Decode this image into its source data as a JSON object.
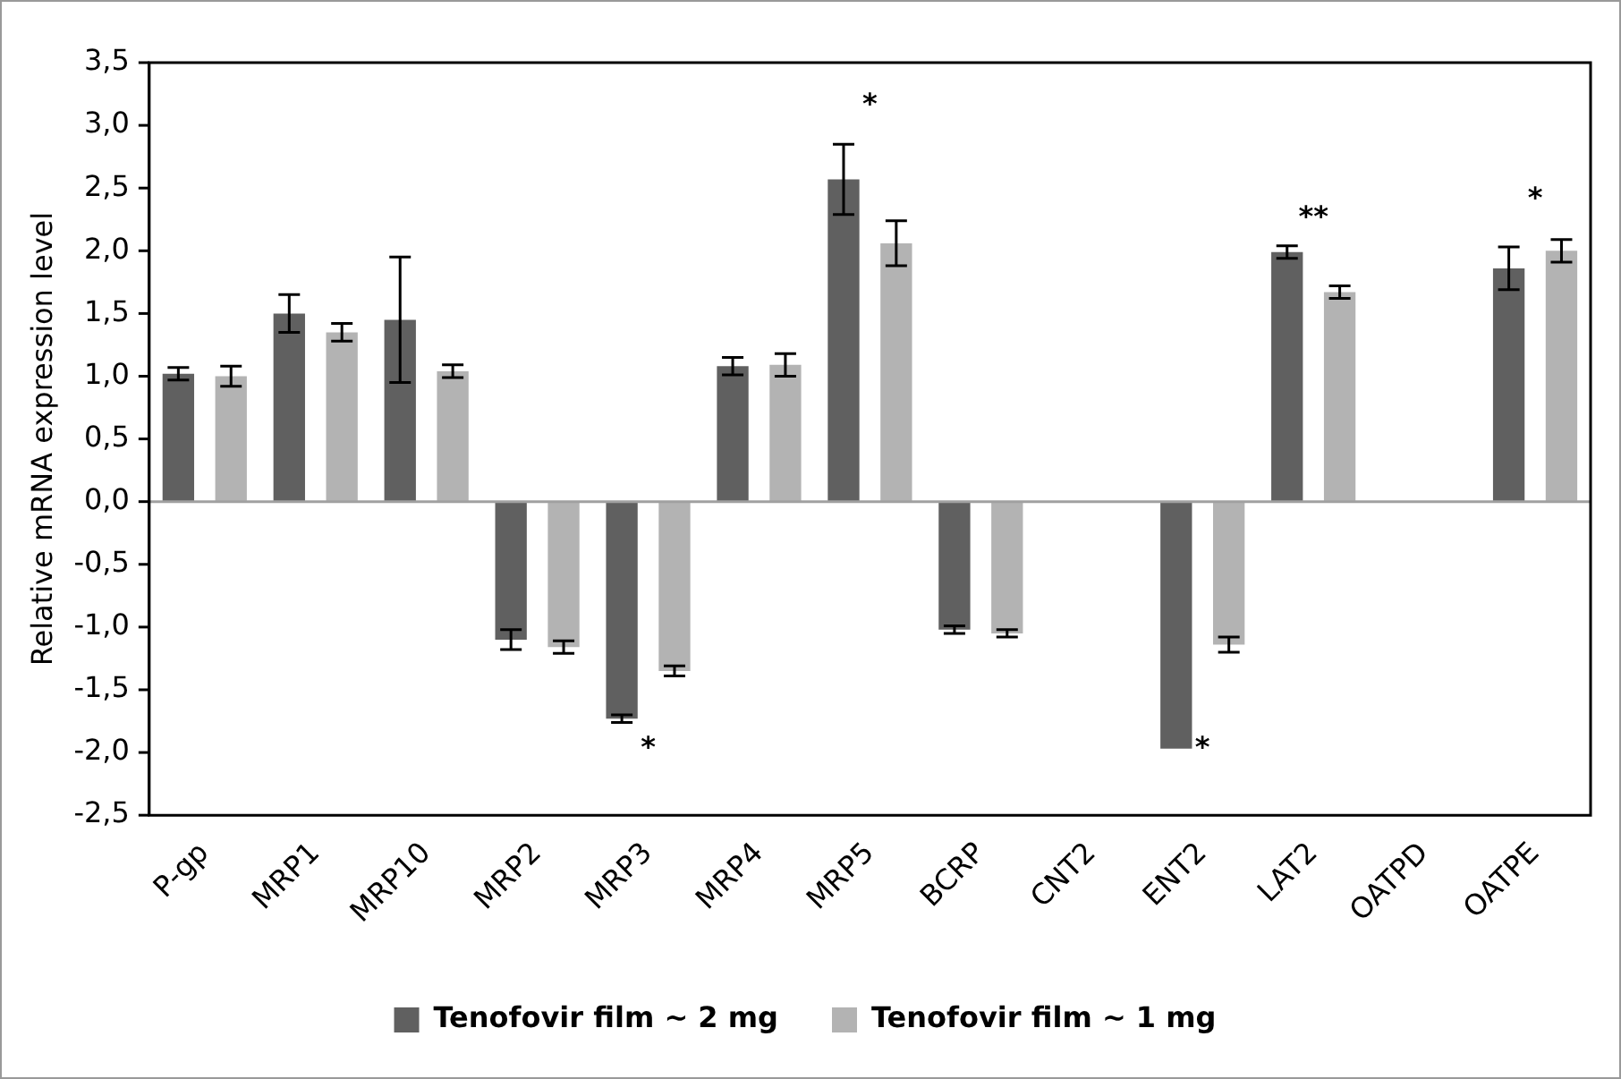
{
  "chart_data": {
    "type": "bar",
    "ylabel": "Relative mRNA expression level",
    "categories": [
      "P-gp",
      "MRP1",
      "MRP10",
      "MRP2",
      "MRP3",
      "MRP4",
      "MRP5",
      "BCRP",
      "CNT2",
      "ENT2",
      "LAT2",
      "OATPD",
      "OATPE"
    ],
    "series": [
      {
        "name": "Tenofovir film ~ 2 mg",
        "color": "#606060",
        "values": [
          1.02,
          1.5,
          1.45,
          -1.1,
          -1.73,
          1.08,
          2.57,
          -1.02,
          null,
          -1.97,
          1.99,
          null,
          1.86
        ],
        "errors": [
          0.05,
          0.15,
          0.5,
          0.08,
          0.03,
          0.07,
          0.28,
          0.03,
          null,
          null,
          0.05,
          null,
          0.17
        ]
      },
      {
        "name": "Tenofovir film ~ 1 mg",
        "color": "#b3b3b3",
        "values": [
          1.0,
          1.35,
          1.04,
          -1.16,
          -1.35,
          1.09,
          2.06,
          -1.05,
          null,
          -1.14,
          1.67,
          null,
          2.0
        ],
        "errors": [
          0.08,
          0.07,
          0.05,
          0.05,
          0.04,
          0.09,
          0.18,
          0.03,
          null,
          0.06,
          0.05,
          null,
          0.09
        ]
      }
    ],
    "ylim": [
      -2.5,
      3.5
    ],
    "yticks": [
      {
        "value": -2.5,
        "label": "-2,5"
      },
      {
        "value": -2,
        "label": "-2,0"
      },
      {
        "value": -1.5,
        "label": "-1,5"
      },
      {
        "value": -1,
        "label": "-1,0"
      },
      {
        "value": -0.5,
        "label": "-0,5"
      },
      {
        "value": 0,
        "label": "0,0"
      },
      {
        "value": 0.5,
        "label": "0,5"
      },
      {
        "value": 1,
        "label": "1,0"
      },
      {
        "value": 1.5,
        "label": "1,5"
      },
      {
        "value": 2,
        "label": "2,0"
      },
      {
        "value": 2.5,
        "label": "2,5"
      },
      {
        "value": 3,
        "label": "3,0"
      },
      {
        "value": 3.5,
        "label": "3,5"
      }
    ],
    "grid": false,
    "legend": "bottom",
    "annotations": [
      "*",
      "*",
      "*",
      "**",
      "*"
    ],
    "ref_lines": [
      {
        "axis": "y",
        "value": 0,
        "color": "#a0a0a0"
      }
    ]
  }
}
